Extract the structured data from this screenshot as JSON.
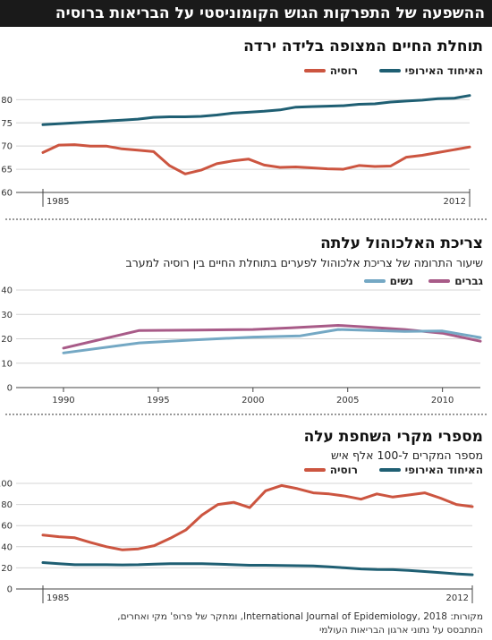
{
  "banner": "ההשפעה של התפרקות הגוש הקומוניסטי על הבריאות ברוסיה",
  "colors": {
    "eu": "#1f5f73",
    "russia": "#cc5540",
    "men": "#a85b88",
    "women": "#74a8c4"
  },
  "chart_data": [
    {
      "type": "line",
      "title": "תוחלת החיים המצופה בלידה ירדה",
      "ylim": [
        60,
        82
      ],
      "yticks": [
        60,
        65,
        70,
        75,
        80
      ],
      "xlim": [
        1985,
        2012
      ],
      "xtick_labels": [
        "1985",
        "2012"
      ],
      "series": [
        {
          "name": "האיחוד האירופי",
          "color": "#1f5f73",
          "x": [
            1985,
            1986,
            1987,
            1988,
            1989,
            1990,
            1991,
            1992,
            1993,
            1994,
            1995,
            1996,
            1997,
            1998,
            1999,
            2000,
            2001,
            2002,
            2003,
            2004,
            2005,
            2006,
            2007,
            2008,
            2009,
            2010,
            2011,
            2012
          ],
          "values": [
            74.6,
            74.8,
            75.0,
            75.2,
            75.4,
            75.6,
            75.8,
            76.2,
            76.3,
            76.3,
            76.4,
            76.7,
            77.1,
            77.3,
            77.5,
            77.8,
            78.4,
            78.5,
            78.6,
            78.7,
            79.0,
            79.1,
            79.5,
            79.7,
            79.9,
            80.2,
            80.3,
            80.9
          ]
        },
        {
          "name": "רוסיה",
          "color": "#cc5540",
          "x": [
            1985,
            1986,
            1987,
            1988,
            1989,
            1990,
            1991,
            1992,
            1993,
            1994,
            1995,
            1996,
            1997,
            1998,
            1999,
            2000,
            2001,
            2002,
            2003,
            2004,
            2005,
            2006,
            2007,
            2008,
            2009,
            2010,
            2011,
            2012
          ],
          "values": [
            68.6,
            70.2,
            70.3,
            70.0,
            70.0,
            69.4,
            69.1,
            68.8,
            65.8,
            64.0,
            64.8,
            66.2,
            66.8,
            67.2,
            65.9,
            65.4,
            65.5,
            65.3,
            65.1,
            65.0,
            65.8,
            65.6,
            65.7,
            67.6,
            68.0,
            68.6,
            69.2,
            69.8
          ]
        }
      ]
    },
    {
      "type": "line",
      "title": "צריכת האלכוהול עלתה",
      "subtitle": "שיעור התרומה של צריכת אלכוהול לפערים בתוחלת החיים בין רוסיה למערב",
      "ylim": [
        0,
        40
      ],
      "yticks": [
        0,
        10,
        20,
        30,
        40
      ],
      "xlim": [
        1987.5,
        2012
      ],
      "xticks": [
        1990,
        1995,
        2000,
        2005,
        2010
      ],
      "series": [
        {
          "name": "גברים",
          "color": "#a85b88",
          "x": [
            1990,
            1994,
            1997,
            2000,
            2002,
            2004.5,
            2006,
            2008,
            2010,
            2012
          ],
          "values": [
            16.2,
            23.4,
            23.6,
            23.8,
            24.5,
            25.5,
            24.8,
            23.8,
            22.3,
            19.0
          ]
        },
        {
          "name": "נשים",
          "color": "#74a8c4",
          "x": [
            1990,
            1994,
            1997,
            2000,
            2002.5,
            2004.5,
            2006,
            2008,
            2010,
            2012
          ],
          "values": [
            14.2,
            18.3,
            19.6,
            20.7,
            21.2,
            23.8,
            23.5,
            23.0,
            23.2,
            20.5
          ]
        }
      ]
    },
    {
      "type": "line",
      "title": "מספרי מקרי השחפת עלה",
      "subtitle": "מספר המקרים ל-100 אלף איש",
      "ylim": [
        0,
        100
      ],
      "yticks": [
        0,
        20,
        40,
        60,
        80,
        100
      ],
      "xlim": [
        1985,
        2012
      ],
      "xtick_labels": [
        "1985",
        "2012"
      ],
      "series": [
        {
          "name": "האיחוד האירופי",
          "color": "#1f5f73",
          "x": [
            1985,
            1986,
            1987,
            1988,
            1989,
            1990,
            1991,
            1992,
            1993,
            1994,
            1995,
            1996,
            1997,
            1998,
            1999,
            2000,
            2001,
            2002,
            2003,
            2004,
            2005,
            2006,
            2007,
            2008,
            2009,
            2010,
            2011,
            2012
          ],
          "values": [
            25,
            24,
            23,
            23,
            23,
            22.8,
            23,
            23.5,
            24,
            24,
            24,
            23.5,
            23,
            22.5,
            22.5,
            22.3,
            22,
            21.8,
            21,
            20,
            19,
            18.5,
            18.3,
            17.5,
            16.5,
            15.5,
            14.3,
            13.5
          ]
        },
        {
          "name": "רוסיה",
          "color": "#cc5540",
          "x": [
            1985,
            1986,
            1987,
            1988,
            1989,
            1990,
            1991,
            1992,
            1993,
            1994,
            1995,
            1996,
            1997,
            1998,
            1999,
            2000,
            2001,
            2002,
            2003,
            2004,
            2005,
            2006,
            2007,
            2008,
            2009,
            2010,
            2011,
            2012
          ],
          "values": [
            51,
            49.5,
            48.5,
            44,
            40,
            37,
            38,
            41,
            48,
            56,
            70,
            80,
            82,
            77,
            93,
            98,
            95,
            91,
            90,
            88,
            85,
            90,
            87,
            89,
            91,
            86,
            80,
            78
          ]
        }
      ]
    }
  ],
  "footer": {
    "line1": "מקורות: International Journal of Epidemiology, 2018, ומחקר של פרופ' מקי ואחרים,",
    "line2": "המתבסס על נתוני ארגון הבריאות העולמי"
  }
}
